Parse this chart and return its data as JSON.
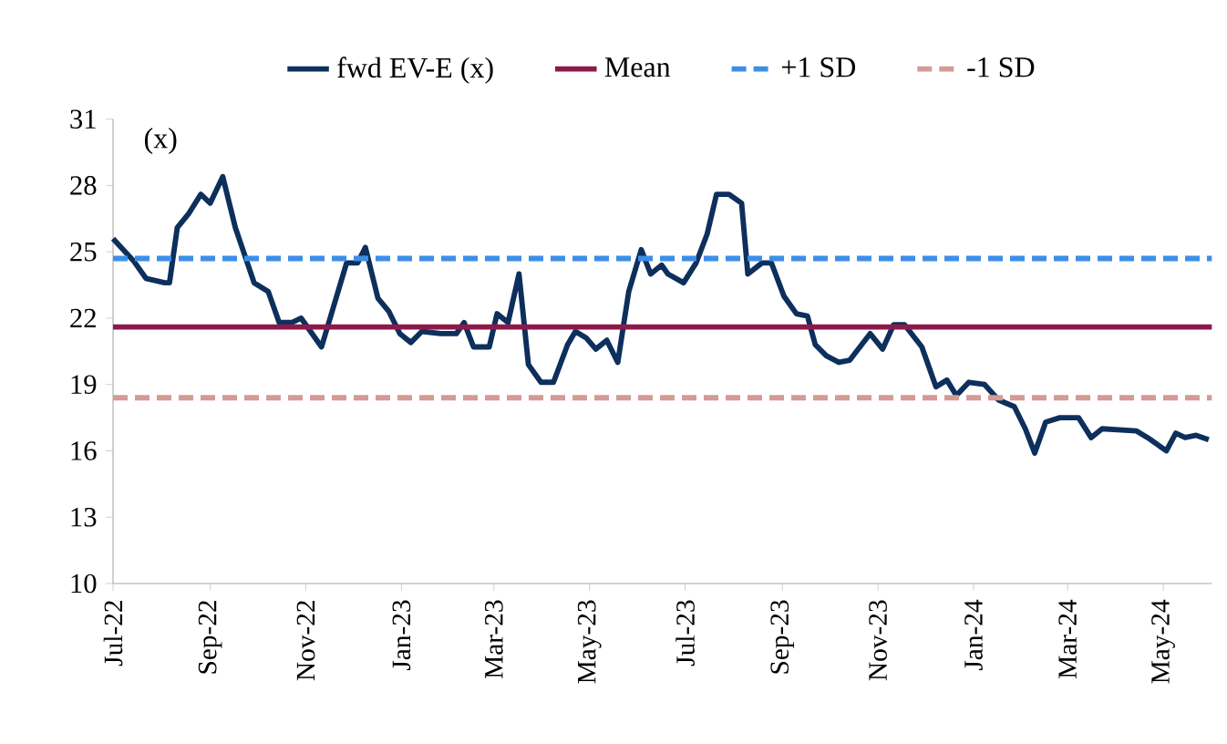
{
  "chart_data": {
    "type": "line",
    "ylabel": "(x)",
    "x": [
      "2022-07-01",
      "2022-07-14",
      "2022-07-22",
      "2022-08-03",
      "2022-08-06",
      "2022-08-11",
      "2022-08-18",
      "2022-08-26",
      "2022-09-01",
      "2022-09-09",
      "2022-09-17",
      "2022-09-29",
      "2022-10-08",
      "2022-10-15",
      "2022-10-23",
      "2022-10-29",
      "2022-11-11",
      "2022-11-27",
      "2022-12-04",
      "2022-12-09",
      "2022-12-17",
      "2022-12-24",
      "2022-12-31",
      "2023-01-07",
      "2023-01-14",
      "2023-01-26",
      "2023-02-05",
      "2023-02-10",
      "2023-02-16",
      "2023-02-26",
      "2023-03-03",
      "2023-03-10",
      "2023-03-17",
      "2023-03-23",
      "2023-03-31",
      "2023-04-08",
      "2023-04-17",
      "2023-04-22",
      "2023-04-29",
      "2023-05-05",
      "2023-05-12",
      "2023-05-19",
      "2023-05-26",
      "2023-06-03",
      "2023-06-09",
      "2023-06-16",
      "2023-06-20",
      "2023-06-30",
      "2023-07-08",
      "2023-07-15",
      "2023-07-21",
      "2023-07-29",
      "2023-08-06",
      "2023-08-10",
      "2023-08-19",
      "2023-08-25",
      "2023-09-02",
      "2023-09-10",
      "2023-09-17",
      "2023-09-22",
      "2023-09-29",
      "2023-10-07",
      "2023-10-14",
      "2023-10-27",
      "2023-11-04",
      "2023-11-11",
      "2023-11-18",
      "2023-11-29",
      "2023-12-08",
      "2023-12-15",
      "2023-12-21",
      "2023-12-29",
      "2024-01-08",
      "2024-01-17",
      "2024-01-27",
      "2024-02-03",
      "2024-02-09",
      "2024-02-16",
      "2024-02-25",
      "2024-03-08",
      "2024-03-16",
      "2024-03-23",
      "2024-04-14",
      "2024-04-21",
      "2024-05-03",
      "2024-05-09",
      "2024-05-15",
      "2024-05-22",
      "2024-05-30"
    ],
    "series": [
      {
        "name": "fwd EV-E (x)",
        "color": "#0d2f5c",
        "values": [
          25.6,
          24.6,
          23.8,
          23.6,
          23.6,
          26.1,
          26.7,
          27.6,
          27.2,
          28.4,
          26.1,
          23.6,
          23.2,
          21.8,
          21.8,
          22.0,
          20.7,
          24.5,
          24.5,
          25.2,
          22.9,
          22.3,
          21.3,
          20.9,
          21.4,
          21.3,
          21.3,
          21.8,
          20.7,
          20.7,
          22.2,
          21.8,
          24.0,
          19.9,
          19.1,
          19.1,
          20.8,
          21.4,
          21.1,
          20.6,
          21.0,
          20.0,
          23.2,
          25.1,
          24.0,
          24.4,
          24.0,
          23.6,
          24.5,
          25.8,
          27.6,
          27.6,
          27.2,
          24.0,
          24.5,
          24.5,
          23.0,
          22.2,
          22.1,
          20.8,
          20.3,
          20.0,
          20.1,
          21.3,
          20.6,
          21.7,
          21.7,
          20.7,
          18.9,
          19.2,
          18.5,
          19.1,
          19.0,
          18.3,
          18.0,
          17.0,
          15.9,
          17.3,
          17.5,
          17.5,
          16.6,
          17.0,
          16.9,
          16.6,
          16.0,
          16.8,
          16.6,
          16.7,
          16.5
        ]
      }
    ],
    "xlim": [
      "2022-07-01",
      "2024-06-01"
    ],
    "xticks": [
      {
        "value": "2022-07-01",
        "label": "Jul-22"
      },
      {
        "value": "2022-09-01",
        "label": "Sep-22"
      },
      {
        "value": "2022-11-01",
        "label": "Nov-22"
      },
      {
        "value": "2023-01-01",
        "label": "Jan-23"
      },
      {
        "value": "2023-03-01",
        "label": "Mar-23"
      },
      {
        "value": "2023-05-01",
        "label": "May-23"
      },
      {
        "value": "2023-07-01",
        "label": "Jul-23"
      },
      {
        "value": "2023-09-01",
        "label": "Sep-23"
      },
      {
        "value": "2023-11-01",
        "label": "Nov-23"
      },
      {
        "value": "2024-01-01",
        "label": "Jan-24"
      },
      {
        "value": "2024-03-01",
        "label": "Mar-24"
      },
      {
        "value": "2024-05-01",
        "label": "May-24"
      }
    ],
    "ylim": [
      10,
      31
    ],
    "yticks": [
      10,
      13,
      16,
      19,
      22,
      25,
      28,
      31
    ],
    "ref_lines": [
      {
        "axis": "y",
        "value": 21.6,
        "label": "Mean",
        "color": "#8b1a4a",
        "line_style": "solid"
      },
      {
        "axis": "y",
        "value": 24.7,
        "label": "+1 SD",
        "color": "#3d8ee8",
        "line_style": "dashed"
      },
      {
        "axis": "y",
        "value": 18.4,
        "label": "-1 SD",
        "color": "#d49a96",
        "line_style": "dashed"
      }
    ],
    "grid": false,
    "legend": "top",
    "marker": "none",
    "line_style": "solid"
  }
}
